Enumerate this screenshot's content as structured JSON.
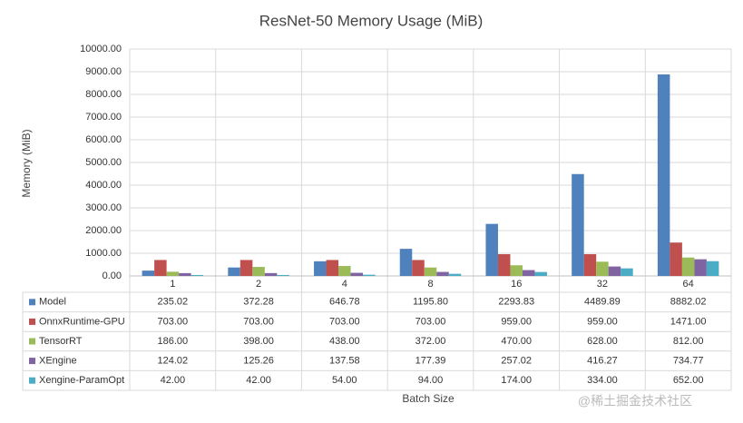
{
  "chart_data": {
    "type": "bar",
    "title": "ResNet-50 Memory Usage (MiB)",
    "y_label": "Memory (MiB)",
    "x_label": "Batch Size",
    "categories": [
      "1",
      "2",
      "4",
      "8",
      "16",
      "32",
      "64"
    ],
    "ylim": [
      0,
      10000
    ],
    "yticks": [
      {
        "value": 0,
        "label": "0.00"
      },
      {
        "value": 1000,
        "label": "1000.00"
      },
      {
        "value": 2000,
        "label": "2000.00"
      },
      {
        "value": 3000,
        "label": "3000.00"
      },
      {
        "value": 4000,
        "label": "4000.00"
      },
      {
        "value": 5000,
        "label": "5000.00"
      },
      {
        "value": 6000,
        "label": "6000.00"
      },
      {
        "value": 7000,
        "label": "7000.00"
      },
      {
        "value": 8000,
        "label": "8000.00"
      },
      {
        "value": 9000,
        "label": "9000.00"
      },
      {
        "value": 10000,
        "label": "10000.00"
      }
    ],
    "grid": true,
    "series": [
      {
        "name": "Model",
        "color": "#4f81bd",
        "values": [
          235.02,
          372.28,
          646.78,
          1195.8,
          2293.83,
          4489.89,
          8882.02
        ],
        "value_labels": [
          "235.02",
          "372.28",
          "646.78",
          "1195.80",
          "2293.83",
          "4489.89",
          "8882.02"
        ]
      },
      {
        "name": "OnnxRuntime-GPU",
        "color": "#c0504d",
        "values": [
          703,
          703,
          703,
          703,
          959,
          959,
          1471
        ],
        "value_labels": [
          "703.00",
          "703.00",
          "703.00",
          "703.00",
          "959.00",
          "959.00",
          "1471.00"
        ]
      },
      {
        "name": "TensorRT",
        "color": "#9bbb59",
        "values": [
          186,
          398,
          438,
          372,
          470,
          628,
          812
        ],
        "value_labels": [
          "186.00",
          "398.00",
          "438.00",
          "372.00",
          "470.00",
          "628.00",
          "812.00"
        ]
      },
      {
        "name": "XEngine",
        "color": "#8064a2",
        "values": [
          124.02,
          125.26,
          137.58,
          177.39,
          257.02,
          416.27,
          734.77
        ],
        "value_labels": [
          "124.02",
          "125.26",
          "137.58",
          "177.39",
          "257.02",
          "416.27",
          "734.77"
        ]
      },
      {
        "name": "Xengine-ParamOpt",
        "color": "#4bacc6",
        "values": [
          42,
          42,
          54,
          94,
          174,
          334,
          652
        ],
        "value_labels": [
          "42.00",
          "42.00",
          "54.00",
          "94.00",
          "174.00",
          "334.00",
          "652.00"
        ]
      }
    ],
    "watermark": "@稀土掘金技术社区"
  }
}
